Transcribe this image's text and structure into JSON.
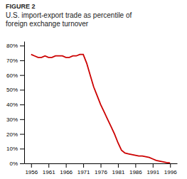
{
  "chart_data": {
    "type": "line",
    "title": "U.S. import-export trade as percentile of\nforeign exchange turnover",
    "annotations": [
      "FIGURE 2"
    ],
    "x": [
      1956,
      1957,
      1958,
      1959,
      1960,
      1961,
      1962,
      1963,
      1964,
      1965,
      1966,
      1967,
      1968,
      1969,
      1970,
      1971,
      1972,
      1973,
      1974,
      1975,
      1976,
      1977,
      1978,
      1979,
      1980,
      1981,
      1982,
      1983,
      1984,
      1985,
      1986,
      1987,
      1988,
      1989,
      1990,
      1991,
      1992,
      1993,
      1994,
      1995,
      1996
    ],
    "values": [
      74,
      73,
      72,
      72,
      73,
      72,
      72,
      73,
      73,
      73,
      72,
      72,
      73,
      73,
      74,
      74,
      68,
      60,
      52,
      46,
      40,
      35,
      30,
      25,
      20,
      14,
      9,
      7,
      6.5,
      6,
      5.5,
      5,
      5,
      4.5,
      4,
      3,
      2,
      1.5,
      1,
      0.5,
      0.3
    ],
    "color": "#CC0000",
    "xlim": [
      1954,
      1998
    ],
    "xticks": [
      1956,
      1961,
      1966,
      1971,
      1976,
      1981,
      1986,
      1991,
      1996
    ],
    "ylim": [
      0,
      83
    ],
    "yticks": [
      {
        "value": 0,
        "label": "0%"
      },
      {
        "value": 10,
        "label": "10%"
      },
      {
        "value": 20,
        "label": "20%"
      },
      {
        "value": 30,
        "label": "30%"
      },
      {
        "value": 40,
        "label": "40%"
      },
      {
        "value": 50,
        "label": "50%"
      },
      {
        "value": 60,
        "label": "60%"
      },
      {
        "value": 70,
        "label": "70%"
      },
      {
        "value": 80,
        "label": "80%"
      }
    ],
    "grid": false
  }
}
